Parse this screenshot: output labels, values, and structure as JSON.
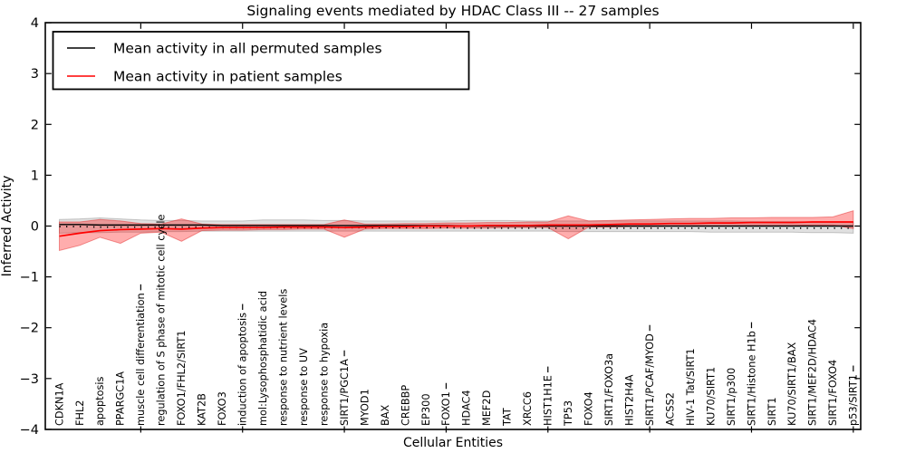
{
  "chart_data": {
    "type": "line",
    "title": "Signaling events mediated by HDAC Class III -- 27 samples",
    "xlabel": "Cellular Entities",
    "ylabel": "Inferred Activity",
    "ylim": [
      -4,
      4
    ],
    "yticks": [
      -4,
      -3,
      -2,
      -1,
      0,
      1,
      2,
      3,
      4
    ],
    "xtick_values": [
      5,
      10,
      15,
      20,
      25,
      30,
      35,
      40
    ],
    "grid": false,
    "legend_position": "upper left",
    "categories": [
      "CDKN1A",
      "FHL2",
      "apoptosis",
      "PPARGC1A",
      "muscle cell differentiation",
      "regulation of S phase of mitotic cell cycle",
      "FOXO1/FHL2/SIRT1",
      "KAT2B",
      "FOXO3",
      "induction of apoptosis",
      "mol:Lysophosphatidic acid",
      "response to nutrient levels",
      "response to UV",
      "response to hypoxia",
      "SIRT1/PGC1A",
      "MYOD1",
      "BAX",
      "CREBBP",
      "EP300",
      "FOXO1",
      "HDAC4",
      "MEF2D",
      "TAT",
      "XRCC6",
      "HIST1H1E",
      "TP53",
      "FOXO4",
      "SIRT1/FOXO3a",
      "HIST2H4A",
      "SIRT1/PCAF/MYOD",
      "ACSS2",
      "HIV-1 Tat/SIRT1",
      "KU70/SIRT1",
      "SIRT1/p300",
      "SIRT1/Histone H1b",
      "SIRT1",
      "KU70/SIRT1/BAX",
      "SIRT1/MEF2D/HDAC4",
      "SIRT1/FOXO4",
      "p53/SIRT1"
    ],
    "series": [
      {
        "name": "Mean activity in all permuted samples",
        "color": "#000000",
        "values": [
          0.03,
          0.03,
          0.02,
          0.02,
          0.02,
          0.02,
          0.02,
          0.02,
          0.01,
          0.01,
          0.01,
          0.01,
          0.01,
          0.01,
          0.01,
          0.01,
          0.01,
          0.01,
          0.01,
          0.01,
          0.0,
          0.0,
          0.0,
          0.0,
          0.0,
          0.0,
          0.0,
          0.0,
          0.0,
          0.0,
          0.0,
          0.0,
          0.0,
          0.0,
          0.0,
          0.0,
          0.0,
          0.0,
          0.0,
          0.0
        ],
        "band": {
          "fill": "rgba(130,130,130,0.25)",
          "edge": "rgba(110,110,110,0.35)",
          "upper": [
            0.13,
            0.14,
            0.16,
            0.14,
            0.12,
            0.11,
            0.11,
            0.1,
            0.1,
            0.1,
            0.12,
            0.12,
            0.12,
            0.11,
            0.11,
            0.1,
            0.1,
            0.1,
            0.1,
            0.1,
            0.11,
            0.11,
            0.11,
            0.1,
            0.1,
            0.1,
            0.1,
            0.1,
            0.1,
            0.1,
            0.1,
            0.1,
            0.1,
            0.1,
            0.09,
            0.09,
            0.09,
            0.08,
            0.08,
            0.08
          ],
          "lower": [
            -0.14,
            -0.13,
            -0.13,
            -0.12,
            -0.12,
            -0.11,
            -0.11,
            -0.1,
            -0.1,
            -0.1,
            -0.1,
            -0.1,
            -0.1,
            -0.1,
            -0.1,
            -0.1,
            -0.1,
            -0.1,
            -0.1,
            -0.1,
            -0.1,
            -0.1,
            -0.1,
            -0.1,
            -0.1,
            -0.11,
            -0.11,
            -0.11,
            -0.11,
            -0.11,
            -0.11,
            -0.11,
            -0.12,
            -0.12,
            -0.12,
            -0.12,
            -0.12,
            -0.13,
            -0.13,
            -0.14
          ]
        }
      },
      {
        "name": "Mean activity in patient samples",
        "color": "#ff0000",
        "values": [
          -0.2,
          -0.14,
          -0.09,
          -0.07,
          -0.06,
          -0.05,
          -0.06,
          -0.04,
          -0.03,
          -0.03,
          -0.03,
          -0.02,
          -0.02,
          -0.02,
          -0.03,
          -0.02,
          -0.01,
          -0.01,
          0.0,
          0.0,
          0.0,
          0.01,
          0.01,
          0.01,
          0.02,
          0.02,
          0.02,
          0.03,
          0.04,
          0.04,
          0.05,
          0.05,
          0.06,
          0.06,
          0.07,
          0.07,
          0.07,
          0.08,
          0.08,
          0.08
        ],
        "band": {
          "fill": "rgba(255,0,0,0.32)",
          "edge": "rgba(225,30,30,0.45)",
          "upper": [
            0.08,
            0.08,
            0.13,
            0.1,
            0.05,
            0.04,
            0.14,
            0.04,
            0.03,
            0.03,
            0.03,
            0.03,
            0.03,
            0.03,
            0.12,
            0.04,
            0.04,
            0.05,
            0.05,
            0.06,
            0.06,
            0.07,
            0.07,
            0.08,
            0.08,
            0.2,
            0.1,
            0.11,
            0.12,
            0.13,
            0.14,
            0.15,
            0.15,
            0.16,
            0.16,
            0.17,
            0.17,
            0.17,
            0.18,
            0.3
          ],
          "lower": [
            -0.48,
            -0.38,
            -0.22,
            -0.34,
            -0.14,
            -0.12,
            -0.3,
            -0.09,
            -0.08,
            -0.08,
            -0.07,
            -0.07,
            -0.06,
            -0.06,
            -0.22,
            -0.06,
            -0.05,
            -0.05,
            -0.05,
            -0.04,
            -0.04,
            -0.04,
            -0.03,
            -0.03,
            -0.03,
            -0.25,
            -0.02,
            -0.02,
            -0.01,
            -0.01,
            0.0,
            0.0,
            0.0,
            0.0,
            0.01,
            0.01,
            0.01,
            0.02,
            0.02,
            -0.05
          ]
        }
      }
    ]
  }
}
